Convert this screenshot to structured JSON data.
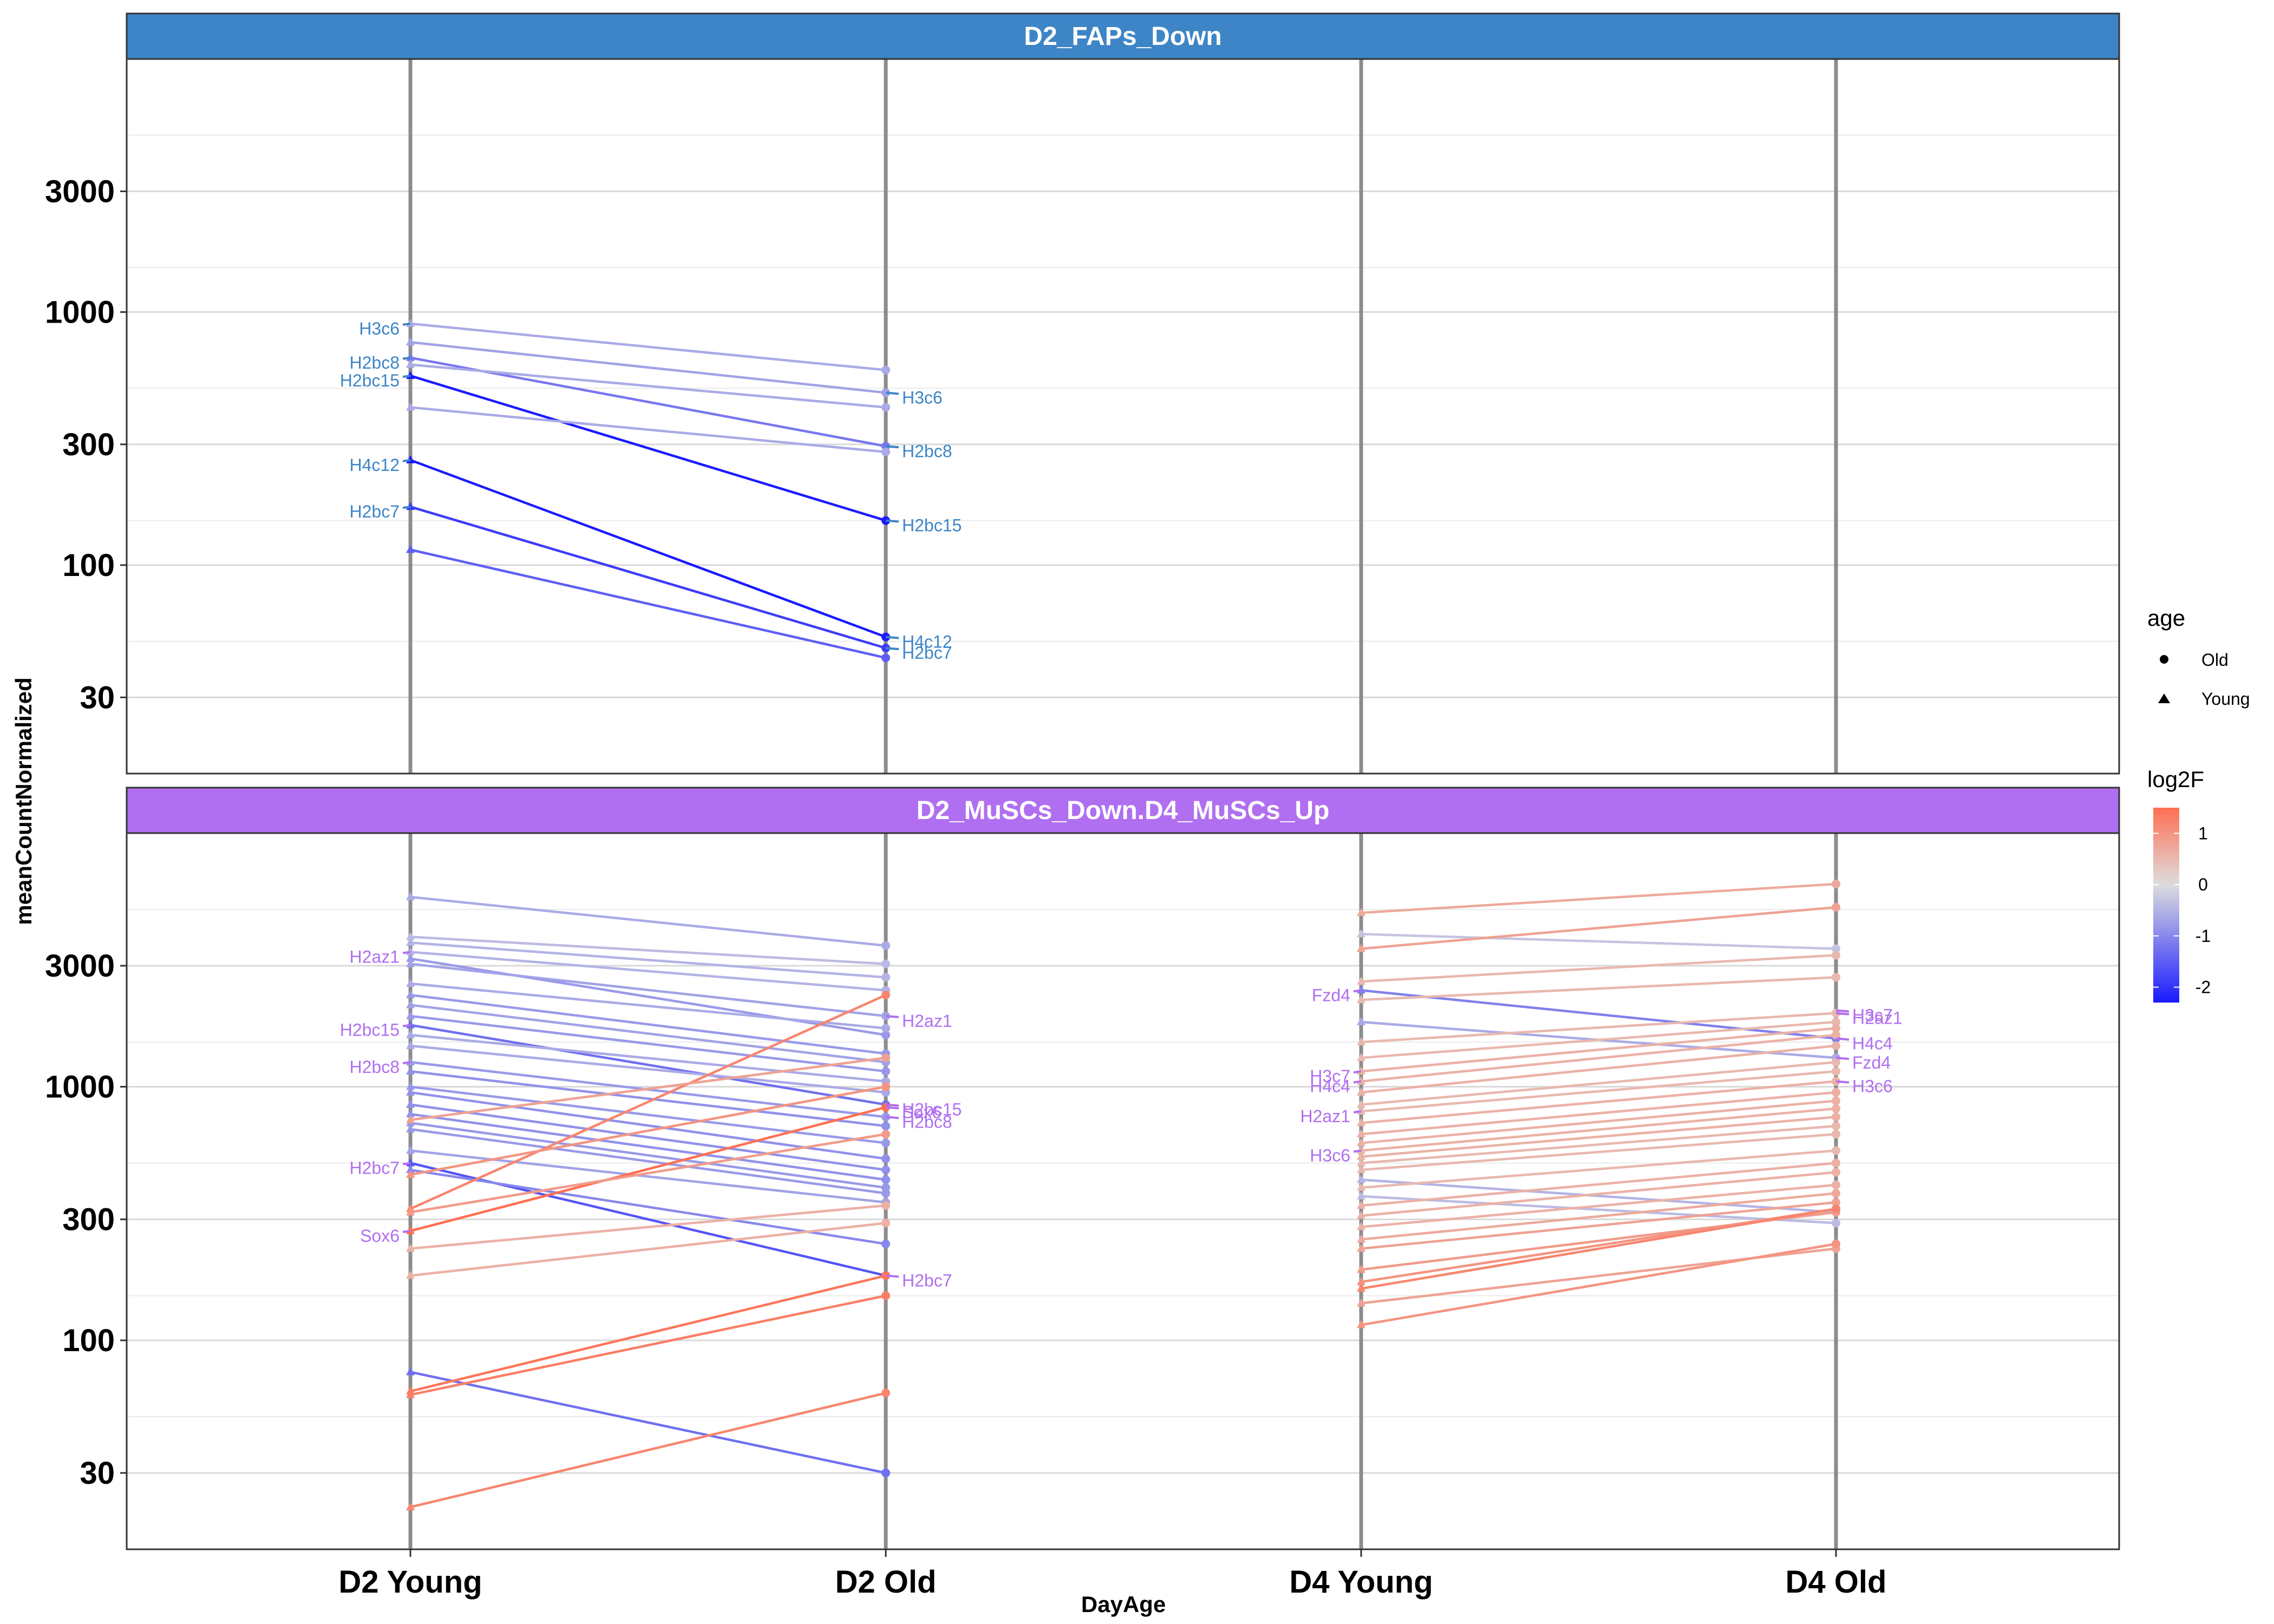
{
  "chart_data": {
    "type": "line",
    "xlabel": "DayAge",
    "ylabel": "meanCountNormalized",
    "categories": [
      "D2 Young",
      "D2 Old",
      "D4 Young",
      "D4 Old"
    ],
    "y_scale": "log10",
    "ylim": [
      15,
      10000
    ],
    "y_ticks": [
      30,
      100,
      300,
      1000,
      3000
    ],
    "y_tick_labels": [
      "30",
      "100",
      "300",
      "1000",
      "3000"
    ],
    "legend": {
      "position": "right",
      "shape_title": "age",
      "shape_entries": [
        {
          "label": "Old",
          "shape": "circle"
        },
        {
          "label": "Young",
          "shape": "triangle"
        }
      ],
      "color_title": "log2F",
      "color_ticks": [
        {
          "label": "1",
          "value": 1
        },
        {
          "label": "0",
          "value": 0
        },
        {
          "label": "-1",
          "value": -1
        },
        {
          "label": "-2",
          "value": -2
        }
      ],
      "color_range": [
        -2.3,
        1.5
      ],
      "colors": {
        "low": "#1a1aff",
        "mid": "#dddddd",
        "high": "#ff6f52"
      }
    },
    "panels": [
      {
        "title": "D2_FAPs_Down",
        "strip_color": "#3d85c6",
        "label_color": "#3d85c6",
        "lines": [
          {
            "from": [
              0,
              900
            ],
            "to": [
              1,
              590
            ],
            "log2F": -0.6
          },
          {
            "from": [
              0,
              760
            ],
            "to": [
              1,
              480
            ],
            "log2F": -0.7
          },
          {
            "from": [
              0,
              660
            ],
            "to": [
              1,
              295
            ],
            "log2F": -1.2
          },
          {
            "from": [
              0,
              620
            ],
            "to": [
              1,
              420
            ],
            "log2F": -0.6
          },
          {
            "from": [
              0,
              560
            ],
            "to": [
              1,
              150
            ],
            "log2F": -2.3
          },
          {
            "from": [
              0,
              420
            ],
            "to": [
              1,
              280
            ],
            "log2F": -0.6
          },
          {
            "from": [
              0,
              260
            ],
            "to": [
              1,
              52
            ],
            "log2F": -2.3
          },
          {
            "from": [
              0,
              170
            ],
            "to": [
              1,
              47
            ],
            "log2F": -1.9
          },
          {
            "from": [
              0,
              115
            ],
            "to": [
              1,
              43
            ],
            "log2F": -1.5
          }
        ],
        "labels": [
          {
            "text": "H3c6",
            "cat": 0,
            "y": 900
          },
          {
            "text": "H2bc8",
            "cat": 0,
            "y": 660
          },
          {
            "text": "H2bc15",
            "cat": 0,
            "y": 560
          },
          {
            "text": "H4c12",
            "cat": 0,
            "y": 260
          },
          {
            "text": "H2bc7",
            "cat": 0,
            "y": 170
          },
          {
            "text": "H3c6",
            "cat": 1,
            "y": 480
          },
          {
            "text": "H2bc8",
            "cat": 1,
            "y": 295
          },
          {
            "text": "H2bc15",
            "cat": 1,
            "y": 150
          },
          {
            "text": "H4c12",
            "cat": 1,
            "y": 52
          },
          {
            "text": "H2bc7",
            "cat": 1,
            "y": 47
          }
        ]
      },
      {
        "title": "D2_MuSCs_Down.D4_MuSCs_Up",
        "strip_color": "#b06ff0",
        "label_color": "#b06ff0",
        "lines": [
          {
            "from": [
              0,
              5600
            ],
            "to": [
              1,
              3600
            ],
            "log2F": -0.6
          },
          {
            "from": [
              0,
              3900
            ],
            "to": [
              1,
              3050
            ],
            "log2F": -0.4
          },
          {
            "from": [
              0,
              3700
            ],
            "to": [
              1,
              2700
            ],
            "log2F": -0.5
          },
          {
            "from": [
              0,
              3400
            ],
            "to": [
              1,
              2400
            ],
            "log2F": -0.5
          },
          {
            "from": [
              0,
              3200
            ],
            "to": [
              1,
              1600
            ],
            "log2F": -0.8
          },
          {
            "from": [
              0,
              3050
            ],
            "to": [
              1,
              1900
            ],
            "log2F": -0.7
          },
          {
            "from": [
              0,
              2550
            ],
            "to": [
              1,
              1700
            ],
            "log2F": -0.6
          },
          {
            "from": [
              0,
              2300
            ],
            "to": [
              1,
              1350
            ],
            "log2F": -0.8
          },
          {
            "from": [
              0,
              2100
            ],
            "to": [
              1,
              1250
            ],
            "log2F": -0.7
          },
          {
            "from": [
              0,
              1900
            ],
            "to": [
              1,
              1150
            ],
            "log2F": -0.8
          },
          {
            "from": [
              0,
              1750
            ],
            "to": [
              1,
              850
            ],
            "log2F": -1.3
          },
          {
            "from": [
              0,
              1600
            ],
            "to": [
              1,
              1050
            ],
            "log2F": -0.6
          },
          {
            "from": [
              0,
              1450
            ],
            "to": [
              1,
              950
            ],
            "log2F": -0.6
          },
          {
            "from": [
              0,
              1250
            ],
            "to": [
              1,
              760
            ],
            "log2F": -0.8
          },
          {
            "from": [
              0,
              1150
            ],
            "to": [
              1,
              700
            ],
            "log2F": -0.9
          },
          {
            "from": [
              0,
              1000
            ],
            "to": [
              1,
              600
            ],
            "log2F": -0.8
          },
          {
            "from": [
              0,
              950
            ],
            "to": [
              1,
              520
            ],
            "log2F": -0.9
          },
          {
            "from": [
              0,
              850
            ],
            "to": [
              1,
              470
            ],
            "log2F": -0.9
          },
          {
            "from": [
              0,
              780
            ],
            "to": [
              1,
              430
            ],
            "log2F": -0.9
          },
          {
            "from": [
              0,
              720
            ],
            "to": [
              1,
              400
            ],
            "log2F": -0.8
          },
          {
            "from": [
              0,
              680
            ],
            "to": [
              1,
              380
            ],
            "log2F": -0.8
          },
          {
            "from": [
              0,
              560
            ],
            "to": [
              1,
              350
            ],
            "log2F": -0.7
          },
          {
            "from": [
              0,
              500
            ],
            "to": [
              1,
              180
            ],
            "log2F": -1.6
          },
          {
            "from": [
              0,
              470
            ],
            "to": [
              1,
              240
            ],
            "log2F": -1.0
          },
          {
            "from": [
              0,
              75
            ],
            "to": [
              1,
              30
            ],
            "log2F": -1.3
          },
          {
            "from": [
              0,
              270
            ],
            "to": [
              1,
              830
            ],
            "log2F": 1.5
          },
          {
            "from": [
              0,
              330
            ],
            "to": [
              1,
              2300
            ],
            "log2F": 1.2
          },
          {
            "from": [
              0,
              740
            ],
            "to": [
              1,
              1300
            ],
            "log2F": 0.8
          },
          {
            "from": [
              0,
              450
            ],
            "to": [
              1,
              1000
            ],
            "log2F": 1.0
          },
          {
            "from": [
              0,
              320
            ],
            "to": [
              1,
              650
            ],
            "log2F": 0.9
          },
          {
            "from": [
              0,
              230
            ],
            "to": [
              1,
              340
            ],
            "log2F": 0.6
          },
          {
            "from": [
              0,
              180
            ],
            "to": [
              1,
              290
            ],
            "log2F": 0.6
          },
          {
            "from": [
              0,
              63
            ],
            "to": [
              1,
              180
            ],
            "log2F": 1.4
          },
          {
            "from": [
              0,
              61
            ],
            "to": [
              1,
              150
            ],
            "log2F": 1.3
          },
          {
            "from": [
              0,
              22
            ],
            "to": [
              1,
              62
            ],
            "log2F": 1.2
          },
          {
            "from": [
              2,
              4850
            ],
            "to": [
              3,
              6300
            ],
            "log2F": 0.7
          },
          {
            "from": [
              2,
              4000
            ],
            "to": [
              3,
              3500
            ],
            "log2F": -0.3
          },
          {
            "from": [
              2,
              3500
            ],
            "to": [
              3,
              5100
            ],
            "log2F": 0.8
          },
          {
            "from": [
              2,
              2600
            ],
            "to": [
              3,
              3300
            ],
            "log2F": 0.5
          },
          {
            "from": [
              2,
              2400
            ],
            "to": [
              3,
              1550
            ],
            "log2F": -1.1
          },
          {
            "from": [
              2,
              2200
            ],
            "to": [
              3,
              2700
            ],
            "log2F": 0.5
          },
          {
            "from": [
              2,
              1800
            ],
            "to": [
              3,
              1300
            ],
            "log2F": -0.6
          },
          {
            "from": [
              2,
              1500
            ],
            "to": [
              3,
              1950
            ],
            "log2F": 0.5
          },
          {
            "from": [
              2,
              1300
            ],
            "to": [
              3,
              1800
            ],
            "log2F": 0.5
          },
          {
            "from": [
              2,
              1150
            ],
            "to": [
              3,
              1700
            ],
            "log2F": 0.6
          },
          {
            "from": [
              2,
              1050
            ],
            "to": [
              3,
              1600
            ],
            "log2F": 0.6
          },
          {
            "from": [
              2,
              950
            ],
            "to": [
              3,
              1450
            ],
            "log2F": 0.6
          },
          {
            "from": [
              2,
              850
            ],
            "to": [
              3,
              1250
            ],
            "log2F": 0.5
          },
          {
            "from": [
              2,
              800
            ],
            "to": [
              3,
              1150
            ],
            "log2F": 0.5
          },
          {
            "from": [
              2,
              720
            ],
            "to": [
              3,
              1050
            ],
            "log2F": 0.6
          },
          {
            "from": [
              2,
              650
            ],
            "to": [
              3,
              950
            ],
            "log2F": 0.6
          },
          {
            "from": [
              2,
              600
            ],
            "to": [
              3,
              880
            ],
            "log2F": 0.6
          },
          {
            "from": [
              2,
              560
            ],
            "to": [
              3,
              820
            ],
            "log2F": 0.6
          },
          {
            "from": [
              2,
              530
            ],
            "to": [
              3,
              760
            ],
            "log2F": 0.6
          },
          {
            "from": [
              2,
              500
            ],
            "to": [
              3,
              700
            ],
            "log2F": 0.5
          },
          {
            "from": [
              2,
              470
            ],
            "to": [
              3,
              650
            ],
            "log2F": 0.5
          },
          {
            "from": [
              2,
              430
            ],
            "to": [
              3,
              320
            ],
            "log2F": -0.5
          },
          {
            "from": [
              2,
              400
            ],
            "to": [
              3,
              560
            ],
            "log2F": 0.5
          },
          {
            "from": [
              2,
              370
            ],
            "to": [
              3,
              290
            ],
            "log2F": -0.4
          },
          {
            "from": [
              2,
              340
            ],
            "to": [
              3,
              500
            ],
            "log2F": 0.6
          },
          {
            "from": [
              2,
              310
            ],
            "to": [
              3,
              460
            ],
            "log2F": 0.6
          },
          {
            "from": [
              2,
              280
            ],
            "to": [
              3,
              410
            ],
            "log2F": 0.6
          },
          {
            "from": [
              2,
              250
            ],
            "to": [
              3,
              380
            ],
            "log2F": 0.7
          },
          {
            "from": [
              2,
              230
            ],
            "to": [
              3,
              350
            ],
            "log2F": 0.8
          },
          {
            "from": [
              2,
              190
            ],
            "to": [
              3,
              320
            ],
            "log2F": 0.9
          },
          {
            "from": [
              2,
              170
            ],
            "to": [
              3,
              330
            ],
            "log2F": 1.0
          },
          {
            "from": [
              2,
              160
            ],
            "to": [
              3,
              330
            ],
            "log2F": 1.2
          },
          {
            "from": [
              2,
              140
            ],
            "to": [
              3,
              230
            ],
            "log2F": 0.8
          },
          {
            "from": [
              2,
              115
            ],
            "to": [
              3,
              240
            ],
            "log2F": 1.0
          }
        ],
        "labels": [
          {
            "text": "H2az1",
            "cat": 0,
            "y": 3400
          },
          {
            "text": "H2bc15",
            "cat": 0,
            "y": 1750
          },
          {
            "text": "H2bc8",
            "cat": 0,
            "y": 1250
          },
          {
            "text": "H2bc7",
            "cat": 0,
            "y": 500
          },
          {
            "text": "Sox6",
            "cat": 0,
            "y": 270
          },
          {
            "text": "H2az1",
            "cat": 1,
            "y": 1900
          },
          {
            "text": "Sox6",
            "cat": 1,
            "y": 830
          },
          {
            "text": "H2bc8",
            "cat": 1,
            "y": 760
          },
          {
            "text": "H2bc15",
            "cat": 1,
            "y": 850
          },
          {
            "text": "H2bc7",
            "cat": 1,
            "y": 180
          },
          {
            "text": "Fzd4",
            "cat": 2,
            "y": 2400
          },
          {
            "text": "H3c7",
            "cat": 2,
            "y": 1150
          },
          {
            "text": "H4c4",
            "cat": 2,
            "y": 1050
          },
          {
            "text": "H2az1",
            "cat": 2,
            "y": 800
          },
          {
            "text": "H3c6",
            "cat": 2,
            "y": 560
          },
          {
            "text": "H3c7",
            "cat": 3,
            "y": 2000
          },
          {
            "text": "H2az1",
            "cat": 3,
            "y": 1950
          },
          {
            "text": "H4c4",
            "cat": 3,
            "y": 1550
          },
          {
            "text": "Fzd4",
            "cat": 3,
            "y": 1300
          },
          {
            "text": "H3c6",
            "cat": 3,
            "y": 1050
          }
        ]
      }
    ]
  }
}
